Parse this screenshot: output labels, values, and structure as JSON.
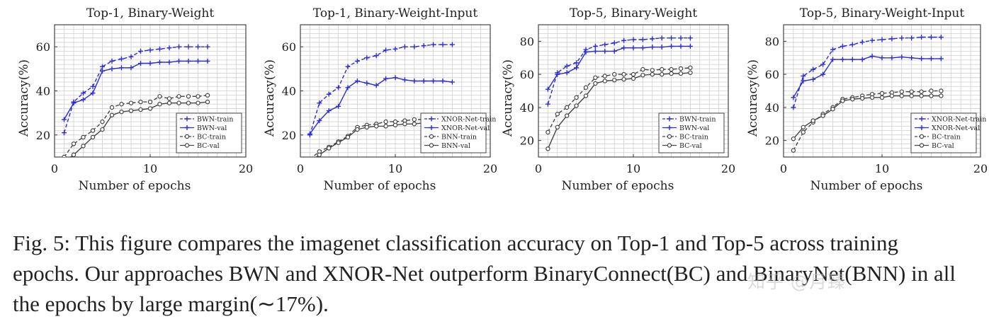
{
  "chart_data": [
    {
      "type": "line",
      "title": "Top-1, Binary-Weight",
      "xlabel": "Number of epochs",
      "ylabel": "Accuracy(%)",
      "xlim": [
        0,
        20
      ],
      "ylim": [
        10,
        70
      ],
      "xticks": [
        "0",
        "10",
        "20"
      ],
      "yticks": [
        "20",
        "40",
        "60"
      ],
      "legend_position": "bottom-right",
      "series": [
        {
          "name": "BWN-train",
          "color": "#2b2bd6",
          "dash": true,
          "marker": "plus",
          "x": [
            1,
            2,
            3,
            4,
            5,
            6,
            7,
            8,
            9,
            10,
            11,
            12,
            13,
            14,
            15,
            16
          ],
          "y": [
            21,
            35,
            39,
            42,
            51,
            53.5,
            54.5,
            55.5,
            58,
            58.5,
            59,
            59.5,
            60,
            60,
            60,
            60
          ]
        },
        {
          "name": "BWN-val",
          "color": "#2b2bd6",
          "dash": false,
          "marker": "plus",
          "x": [
            1,
            2,
            3,
            4,
            5,
            6,
            7,
            8,
            9,
            10,
            11,
            12,
            13,
            14,
            15,
            16
          ],
          "y": [
            27,
            34.5,
            36,
            39,
            49,
            50,
            50.5,
            50.5,
            52.5,
            52.5,
            53,
            53,
            53.5,
            53.5,
            53.5,
            53.5
          ]
        },
        {
          "name": "BC-train",
          "color": "#444444",
          "dash": true,
          "marker": "circle",
          "x": [
            1,
            2,
            3,
            4,
            5,
            6,
            7,
            8,
            9,
            10,
            11,
            12,
            13,
            14,
            15,
            16
          ],
          "y": [
            10,
            16,
            19,
            22,
            26,
            32.5,
            34,
            34.5,
            35,
            35,
            37.5,
            36.5,
            37.5,
            37.5,
            37.5,
            38
          ]
        },
        {
          "name": "BC-val",
          "color": "#444444",
          "dash": false,
          "marker": "circle",
          "x": [
            1,
            2,
            3,
            4,
            5,
            6,
            7,
            8,
            9,
            10,
            11,
            12,
            13,
            14,
            15,
            16
          ],
          "y": [
            8,
            11,
            15,
            19,
            22.5,
            29,
            30.5,
            31,
            31.5,
            32,
            34,
            34.5,
            34.5,
            34.5,
            34.5,
            35
          ]
        }
      ]
    },
    {
      "type": "line",
      "title": "Top-1, Binary-Weight-Input",
      "xlabel": "Number of epochs",
      "ylabel": "Accuracy(%)",
      "xlim": [
        0,
        20
      ],
      "ylim": [
        10,
        70
      ],
      "xticks": [
        "0",
        "10",
        "20"
      ],
      "yticks": [
        "20",
        "40",
        "60"
      ],
      "legend_position": "bottom-right",
      "series": [
        {
          "name": "XNOR-Net-train",
          "color": "#2b2bd6",
          "dash": true,
          "marker": "plus",
          "x": [
            1,
            2,
            3,
            4,
            5,
            6,
            7,
            8,
            9,
            10,
            11,
            12,
            13,
            14,
            15,
            16
          ],
          "y": [
            20,
            34.5,
            38.5,
            41.5,
            51,
            53.5,
            55,
            56,
            58.5,
            59,
            60,
            60,
            60.5,
            61,
            61,
            61
          ]
        },
        {
          "name": "XNOR-Net-val",
          "color": "#2b2bd6",
          "dash": false,
          "marker": "plus",
          "x": [
            1,
            2,
            3,
            4,
            5,
            6,
            7,
            8,
            9,
            10,
            11,
            12,
            13,
            14,
            15,
            16
          ],
          "y": [
            20.5,
            26.5,
            31,
            33,
            41.5,
            44.5,
            43.5,
            42.5,
            45.5,
            46,
            45,
            44.5,
            44.5,
            44.5,
            44.5,
            44
          ]
        },
        {
          "name": "BNN-train",
          "color": "#444444",
          "dash": true,
          "marker": "circle",
          "x": [
            1,
            2,
            3,
            4,
            5,
            6,
            7,
            8,
            9,
            10,
            11,
            12,
            13,
            14,
            15,
            16
          ],
          "y": [
            9,
            12.5,
            14.5,
            17,
            19.5,
            23.5,
            24.5,
            25,
            26,
            26,
            26.5,
            27,
            27,
            27,
            27,
            27
          ]
        },
        {
          "name": "BNN-val",
          "color": "#444444",
          "dash": false,
          "marker": "circle",
          "x": [
            1,
            2,
            3,
            4,
            5,
            6,
            7,
            8,
            9,
            10,
            11,
            12,
            13,
            14,
            15,
            16
          ],
          "y": [
            8,
            11,
            14,
            16.5,
            19,
            22.5,
            23.5,
            24,
            24,
            24.5,
            25,
            25,
            25.5,
            25.5,
            25.5,
            25.5
          ]
        }
      ]
    },
    {
      "type": "line",
      "title": "Top-5, Binary-Weight",
      "xlabel": "Number of epochs",
      "ylabel": "Accuracy(%)",
      "xlim": [
        0,
        20
      ],
      "ylim": [
        10,
        90
      ],
      "xticks": [
        "0",
        "10",
        "20"
      ],
      "yticks": [
        "20",
        "40",
        "60",
        "80"
      ],
      "legend_position": "bottom-right",
      "series": [
        {
          "name": "BWN-train",
          "color": "#2b2bd6",
          "dash": true,
          "marker": "plus",
          "x": [
            1,
            2,
            3,
            4,
            5,
            6,
            7,
            8,
            9,
            10,
            11,
            12,
            13,
            14,
            15,
            16
          ],
          "y": [
            42,
            61,
            65,
            67,
            75,
            77,
            78,
            79,
            80.5,
            81,
            81,
            81.5,
            82,
            82,
            82,
            82
          ]
        },
        {
          "name": "BWN-val",
          "color": "#2b2bd6",
          "dash": false,
          "marker": "plus",
          "x": [
            1,
            2,
            3,
            4,
            5,
            6,
            7,
            8,
            9,
            10,
            11,
            12,
            13,
            14,
            15,
            16
          ],
          "y": [
            51,
            60,
            61,
            64,
            73.5,
            74,
            74,
            74,
            76,
            76,
            76,
            76.5,
            76.5,
            77,
            77,
            77
          ]
        },
        {
          "name": "BC-train",
          "color": "#444444",
          "dash": true,
          "marker": "circle",
          "x": [
            1,
            2,
            3,
            4,
            5,
            6,
            7,
            8,
            9,
            10,
            11,
            12,
            13,
            14,
            15,
            16
          ],
          "y": [
            25,
            36,
            40,
            46,
            52,
            58,
            59,
            60,
            60,
            60,
            63,
            62.5,
            63,
            63,
            63.5,
            64
          ]
        },
        {
          "name": "BC-val",
          "color": "#444444",
          "dash": false,
          "marker": "circle",
          "x": [
            1,
            2,
            3,
            4,
            5,
            6,
            7,
            8,
            9,
            10,
            11,
            12,
            13,
            14,
            15,
            16
          ],
          "y": [
            15,
            28,
            35,
            41,
            47,
            54.5,
            56,
            56.5,
            57,
            57.5,
            59.5,
            60,
            60,
            60.5,
            60.5,
            61
          ]
        }
      ]
    },
    {
      "type": "line",
      "title": "Top-5, Binary-Weight-Input",
      "xlabel": "Number of epochs",
      "ylabel": "Accuracy(%)",
      "xlim": [
        0,
        20
      ],
      "ylim": [
        10,
        90
      ],
      "xticks": [
        "0",
        "10",
        "20"
      ],
      "yticks": [
        "20",
        "40",
        "60",
        "80"
      ],
      "legend_position": "bottom-right",
      "series": [
        {
          "name": "XNOR-Net-train",
          "color": "#2b2bd6",
          "dash": true,
          "marker": "plus",
          "x": [
            1,
            2,
            3,
            4,
            5,
            6,
            7,
            8,
            9,
            10,
            11,
            12,
            13,
            14,
            15,
            16
          ],
          "y": [
            40,
            59,
            63,
            66,
            75,
            77,
            78,
            79.5,
            80.5,
            81,
            81.5,
            82,
            82,
            82.5,
            82.5,
            82.5
          ]
        },
        {
          "name": "XNOR-Net-val",
          "color": "#2b2bd6",
          "dash": false,
          "marker": "plus",
          "x": [
            1,
            2,
            3,
            4,
            5,
            6,
            7,
            8,
            9,
            10,
            11,
            12,
            13,
            14,
            15,
            16
          ],
          "y": [
            46,
            56,
            57,
            60,
            69,
            69,
            69,
            69,
            71,
            70,
            70,
            70.5,
            70,
            69.5,
            69.5,
            69.5
          ]
        },
        {
          "name": "BC-train",
          "color": "#444444",
          "dash": true,
          "marker": "circle",
          "x": [
            1,
            2,
            3,
            4,
            5,
            6,
            7,
            8,
            9,
            10,
            11,
            12,
            13,
            14,
            15,
            16
          ],
          "y": [
            14,
            25,
            31,
            36,
            40,
            45,
            46,
            47,
            48,
            48.5,
            49,
            49.5,
            49.5,
            49.5,
            50,
            50
          ]
        },
        {
          "name": "BC-val",
          "color": "#444444",
          "dash": false,
          "marker": "circle",
          "x": [
            1,
            2,
            3,
            4,
            5,
            6,
            7,
            8,
            9,
            10,
            11,
            12,
            13,
            14,
            15,
            16
          ],
          "y": [
            21,
            28,
            32,
            35,
            39,
            44,
            45,
            45.5,
            46,
            46,
            47,
            47,
            47,
            47,
            47,
            47
          ]
        }
      ]
    }
  ],
  "caption": {
    "label": "Fig. 5:",
    "text": "This figure compares the imagenet classification accuracy on Top-1 and Top-5 across training epochs. Our approaches BWN and XNOR-Net outperform BinaryConnect(BC) and BinaryNet(BNN) in all the epochs by large margin(∼17%)."
  },
  "watermark": "知乎 @月臻"
}
